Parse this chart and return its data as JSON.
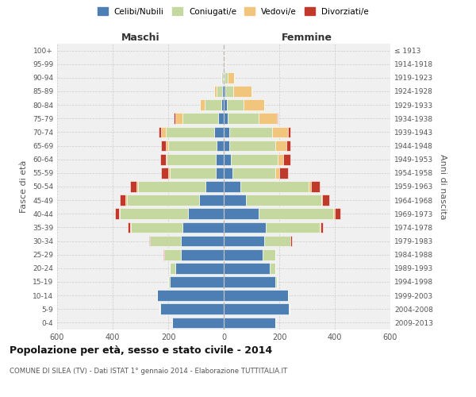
{
  "age_groups": [
    "0-4",
    "5-9",
    "10-14",
    "15-19",
    "20-24",
    "25-29",
    "30-34",
    "35-39",
    "40-44",
    "45-49",
    "50-54",
    "55-59",
    "60-64",
    "65-69",
    "70-74",
    "75-79",
    "80-84",
    "85-89",
    "90-94",
    "95-99",
    "100+"
  ],
  "birth_years": [
    "2009-2013",
    "2004-2008",
    "1999-2003",
    "1994-1998",
    "1989-1993",
    "1984-1988",
    "1979-1983",
    "1974-1978",
    "1969-1973",
    "1964-1968",
    "1959-1963",
    "1954-1958",
    "1949-1953",
    "1944-1948",
    "1939-1943",
    "1934-1938",
    "1929-1933",
    "1924-1928",
    "1919-1923",
    "1914-1918",
    "≤ 1913"
  ],
  "maschi": {
    "celibi": [
      185,
      230,
      240,
      195,
      175,
      155,
      155,
      150,
      130,
      90,
      65,
      30,
      30,
      25,
      35,
      20,
      10,
      5,
      3,
      1,
      1
    ],
    "coniugati": [
      0,
      1,
      1,
      5,
      20,
      60,
      110,
      185,
      245,
      260,
      245,
      165,
      175,
      175,
      175,
      130,
      60,
      20,
      5,
      0,
      0
    ],
    "vedovi": [
      0,
      0,
      0,
      0,
      0,
      0,
      0,
      1,
      2,
      3,
      3,
      5,
      5,
      10,
      15,
      25,
      15,
      10,
      2,
      0,
      0
    ],
    "divorziati": [
      0,
      0,
      0,
      0,
      0,
      1,
      5,
      10,
      15,
      20,
      25,
      25,
      20,
      15,
      10,
      5,
      0,
      0,
      0,
      0,
      0
    ]
  },
  "femmine": {
    "nubili": [
      185,
      235,
      230,
      185,
      165,
      140,
      145,
      150,
      125,
      80,
      60,
      30,
      25,
      20,
      20,
      15,
      10,
      5,
      3,
      2,
      1
    ],
    "coniugate": [
      0,
      1,
      1,
      5,
      20,
      45,
      95,
      195,
      270,
      270,
      245,
      155,
      170,
      165,
      155,
      110,
      60,
      30,
      10,
      0,
      0
    ],
    "vedove": [
      0,
      0,
      0,
      0,
      0,
      0,
      1,
      3,
      5,
      5,
      10,
      15,
      20,
      40,
      55,
      65,
      75,
      65,
      25,
      5,
      2
    ],
    "divorziate": [
      0,
      0,
      0,
      0,
      0,
      1,
      5,
      10,
      20,
      25,
      30,
      30,
      25,
      15,
      10,
      5,
      0,
      0,
      0,
      0,
      0
    ]
  },
  "color_celibi": "#4d7fb5",
  "color_coniugati": "#c5d8a0",
  "color_vedovi": "#f2c57c",
  "color_divorziati": "#c0392b",
  "xlim": 600,
  "title": "Popolazione per età, sesso e stato civile - 2014",
  "subtitle": "COMUNE DI SILEA (TV) - Dati ISTAT 1° gennaio 2014 - Elaborazione TUTTITALIA.IT",
  "ylabel_left": "Fasce di età",
  "ylabel_right": "Anni di nascita",
  "xlabel_left": "Maschi",
  "xlabel_right": "Femmine",
  "bg_color": "#f0f0f0",
  "grid_color": "#cccccc"
}
